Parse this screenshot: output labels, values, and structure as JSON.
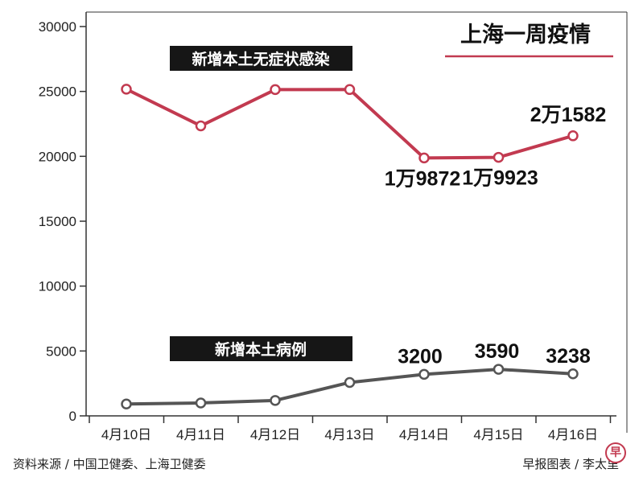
{
  "chart_data": {
    "type": "line",
    "title": "上海一周疫情",
    "categories": [
      "4月10日",
      "4月11日",
      "4月12日",
      "4月13日",
      "4月14日",
      "4月15日",
      "4月16日"
    ],
    "ylim": [
      0,
      30000
    ],
    "yticks": [
      0,
      5000,
      10000,
      15000,
      20000,
      25000,
      30000
    ],
    "grid": false,
    "series": [
      {
        "name": "新增本土无症状感染",
        "color": "#c23a50",
        "values": [
          25173,
          22348,
          25141,
          25146,
          19872,
          19923,
          21582
        ],
        "labels": [
          "",
          "",
          "",
          "",
          "1万9872",
          "1万9923",
          "2万1582"
        ]
      },
      {
        "name": "新增本土病例",
        "color": "#555555",
        "values": [
          914,
          994,
          1189,
          2573,
          3200,
          3590,
          3238
        ],
        "labels": [
          "",
          "",
          "",
          "",
          "3200",
          "3590",
          "3238"
        ]
      }
    ]
  },
  "footer": {
    "source": "资料来源 / 中国卫健委、上海卫健委",
    "credit": "早报图表 / 李太里",
    "logo_char": "早"
  }
}
